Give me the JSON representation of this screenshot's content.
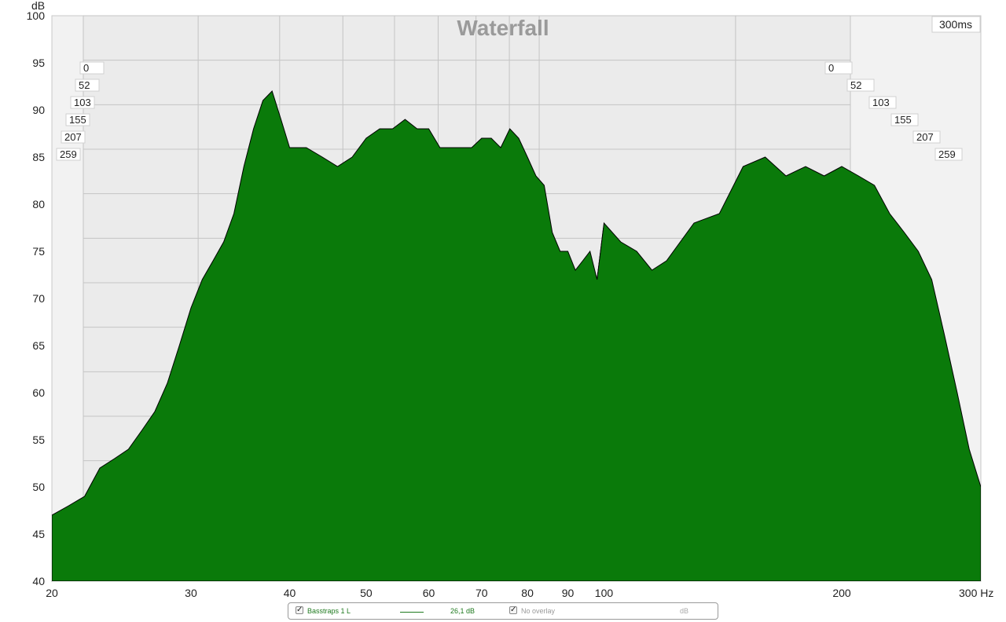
{
  "chart_data": {
    "type": "area",
    "title": "Waterfall",
    "ylabel": "dB",
    "xlabel": "Hz",
    "time_window_label": "300ms",
    "x_scale": "log",
    "xlim": [
      20,
      300
    ],
    "ylim": [
      40,
      100
    ],
    "y_ticks": [
      "40",
      "45",
      "50",
      "55",
      "60",
      "65",
      "70",
      "75",
      "80",
      "85",
      "90",
      "95",
      "100"
    ],
    "x_ticks": [
      "20",
      "30",
      "40",
      "50",
      "60",
      "70",
      "80",
      "90",
      "100",
      "200",
      "300 Hz"
    ],
    "x_tick_values": [
      20,
      30,
      40,
      50,
      60,
      70,
      80,
      90,
      100,
      200,
      300
    ],
    "time_labels_ms": [
      "0",
      "52",
      "103",
      "155",
      "207",
      "259"
    ],
    "fill_color": "#0a7a0a",
    "line_color": "#000000",
    "grid": true,
    "slices": 28,
    "series": [
      {
        "x": [
          20,
          21,
          22,
          23,
          24,
          25,
          26,
          27,
          28,
          29,
          30,
          31,
          32,
          33,
          34,
          35,
          36,
          37,
          38,
          39,
          40,
          42,
          44,
          46,
          48,
          50,
          52,
          54,
          56,
          58,
          60,
          62,
          64,
          66,
          68,
          70,
          72,
          74,
          76,
          78,
          80,
          82,
          84,
          86,
          88,
          90,
          92,
          94,
          96,
          98,
          100,
          105,
          110,
          115,
          120,
          130,
          140,
          150,
          160,
          170,
          180,
          190,
          200,
          210,
          220,
          230,
          240,
          250,
          260,
          270,
          280,
          290,
          300
        ],
        "values": [
          47,
          48,
          49,
          52,
          53,
          54,
          56,
          58,
          61,
          65,
          69,
          72,
          74,
          76,
          79,
          84,
          88,
          91,
          92,
          89,
          86,
          86,
          85,
          84,
          85,
          87,
          88,
          88,
          89,
          88,
          88,
          86,
          86,
          86,
          86,
          87,
          87,
          86,
          88,
          87,
          85,
          83,
          82,
          77,
          75,
          75,
          73,
          74,
          75,
          72,
          78,
          76,
          75,
          73,
          74,
          78,
          79,
          84,
          85,
          83,
          84,
          83,
          84,
          83,
          82,
          79,
          77,
          75,
          72,
          66,
          60,
          54,
          50
        ]
      }
    ]
  },
  "legend": {
    "item_label": "Basstraps 1 L",
    "item_value": "26,1 dB",
    "overlay_label": "No overlay",
    "unit_label": "dB",
    "check_mark": "✓"
  }
}
